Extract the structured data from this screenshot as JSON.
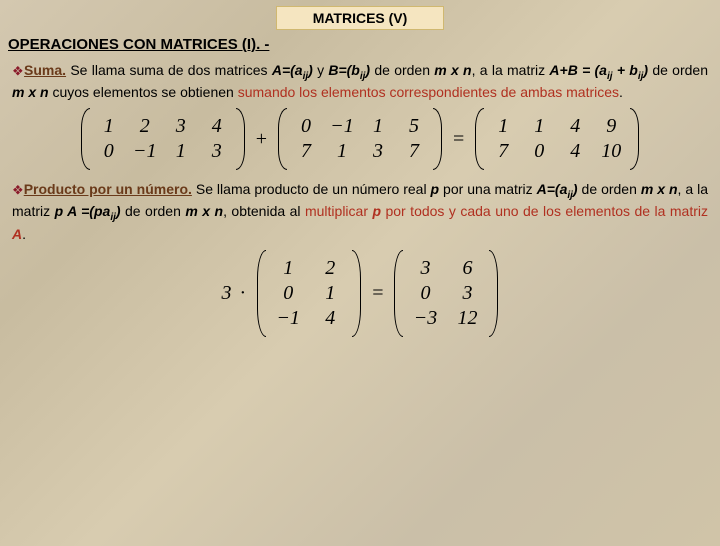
{
  "title": "MATRICES (V)",
  "section_header": "OPERACIONES CON MATRICES (I). -",
  "suma": {
    "bullet": "❖",
    "term": "Suma.",
    "text1": " Se llama suma de dos matrices ",
    "A": "A=(a",
    "ij1": "ij",
    "close1": ")",
    "y": " y ",
    "B": "B=(b",
    "ij2": "ij",
    "close2": ")",
    "de1": " de orden ",
    "mxn1": "m x n",
    "text2": ", a la matriz ",
    "ApB": "A+B = (a",
    "ij3": "ij",
    "plus": " + b",
    "ij4": "ij",
    "close3": ")",
    "de2": " de orden ",
    "mxn2": "m x n",
    "text3": " cuyos elementos se obtienen ",
    "red1": "sumando los elementos correspondientes de ambas matrices",
    "dot1": "."
  },
  "eq1": {
    "m1": [
      [
        "1",
        "2",
        "3",
        "4"
      ],
      [
        "0",
        "−1",
        "1",
        "3"
      ]
    ],
    "plus": "+",
    "m2": [
      [
        "0",
        "−1",
        "1",
        "5"
      ],
      [
        "7",
        "1",
        "3",
        "7"
      ]
    ],
    "eq": "=",
    "m3": [
      [
        "1",
        "1",
        "4",
        "9"
      ],
      [
        "7",
        "0",
        "4",
        "10"
      ]
    ]
  },
  "producto": {
    "bullet": "❖",
    "term": "Producto por un número.",
    "text1": " Se llama producto de un número real ",
    "p": "p",
    "text2": " por una matriz ",
    "A": "A=(a",
    "ij1": "ij",
    "close1": ")",
    "de1": " de orden ",
    "mxn1": "m x n",
    "text3": ", a la matriz ",
    "pA": "p A =(pa",
    "ij2": "ij",
    "close2": ")",
    "de2": " de orden ",
    "mxn2": "m x n",
    "text4": ", obtenida al ",
    "red1": "multiplicar ",
    "p2": "p",
    "red2": " por todos y cada uno de los elementos de la matriz ",
    "A2": "A",
    "dot1": "."
  },
  "eq2": {
    "scalar": "3",
    "dot": "·",
    "m1": [
      [
        "1",
        "2"
      ],
      [
        "0",
        "1"
      ],
      [
        "−1",
        "4"
      ]
    ],
    "eq": "=",
    "m2": [
      [
        "3",
        "6"
      ],
      [
        "0",
        "3"
      ],
      [
        "−3",
        "12"
      ]
    ]
  }
}
